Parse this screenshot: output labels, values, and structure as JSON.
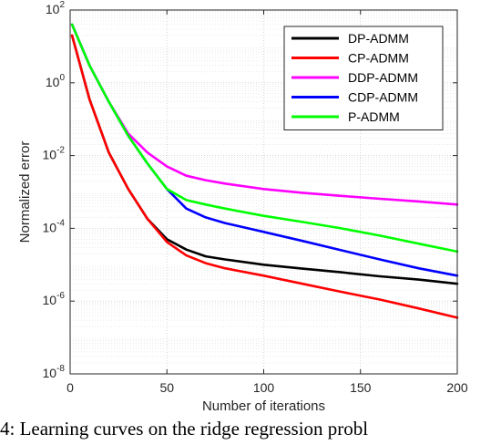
{
  "caption": "4: Learning curves on the ridge regression probl",
  "chart_data": {
    "type": "line",
    "title": "",
    "xlabel": "Number of iterations",
    "ylabel": "Normalized error",
    "xlim": [
      0,
      200
    ],
    "ylim": [
      1e-08,
      100
    ],
    "yscale": "log",
    "grid": true,
    "legend_position": "top-right",
    "x_ticks": [
      0,
      50,
      100,
      150,
      200
    ],
    "y_ticks": [
      {
        "value": 1e-08,
        "base": "10",
        "exp": "-8"
      },
      {
        "value": 1e-06,
        "base": "10",
        "exp": "-6"
      },
      {
        "value": 0.0001,
        "base": "10",
        "exp": "-4"
      },
      {
        "value": 0.01,
        "base": "10",
        "exp": "-2"
      },
      {
        "value": 1,
        "base": "10",
        "exp": "0"
      },
      {
        "value": 100,
        "base": "10",
        "exp": "2"
      }
    ],
    "series": [
      {
        "name": "DP-ADMM",
        "color": "#000000",
        "x": [
          1,
          10,
          20,
          30,
          40,
          50,
          60,
          70,
          80,
          100,
          120,
          140,
          160,
          180,
          200
        ],
        "y": [
          20,
          0.35,
          0.012,
          0.0012,
          0.00018,
          5e-05,
          2.6e-05,
          1.7e-05,
          1.4e-05,
          1e-05,
          7.8e-06,
          6.2e-06,
          4.8e-06,
          3.9e-06,
          3e-06
        ]
      },
      {
        "name": "CP-ADMM",
        "color": "#ff0000",
        "x": [
          1,
          10,
          20,
          30,
          40,
          50,
          60,
          70,
          80,
          100,
          120,
          140,
          160,
          180,
          200
        ],
        "y": [
          20,
          0.35,
          0.012,
          0.0012,
          0.00018,
          4.2e-05,
          1.8e-05,
          1.1e-05,
          8e-06,
          5e-06,
          3e-06,
          1.8e-06,
          1.1e-06,
          6.3e-07,
          3.5e-07
        ]
      },
      {
        "name": "DDP-ADMM",
        "color": "#ff00ff",
        "x": [
          1,
          10,
          20,
          30,
          40,
          50,
          60,
          70,
          80,
          100,
          120,
          140,
          160,
          180,
          200
        ],
        "y": [
          40,
          3,
          0.3,
          0.04,
          0.012,
          0.005,
          0.0028,
          0.0021,
          0.0017,
          0.0012,
          0.00095,
          0.00078,
          0.00065,
          0.00055,
          0.00045
        ]
      },
      {
        "name": "CDP-ADMM",
        "color": "#0000ff",
        "x": [
          1,
          10,
          20,
          30,
          40,
          50,
          60,
          70,
          80,
          100,
          120,
          140,
          160,
          180,
          200
        ],
        "y": [
          40,
          3,
          0.3,
          0.035,
          0.006,
          0.0012,
          0.00035,
          0.0002,
          0.00014,
          8e-05,
          4.5e-05,
          2.5e-05,
          1.4e-05,
          8e-06,
          5e-06
        ]
      },
      {
        "name": "P-ADMM",
        "color": "#00ff00",
        "x": [
          1,
          10,
          20,
          30,
          40,
          50,
          60,
          70,
          80,
          100,
          120,
          140,
          160,
          180,
          200
        ],
        "y": [
          40,
          3,
          0.3,
          0.035,
          0.006,
          0.0012,
          0.0006,
          0.00045,
          0.00035,
          0.00022,
          0.00015,
          0.0001,
          6.3e-05,
          3.8e-05,
          2.3e-05
        ]
      }
    ]
  }
}
